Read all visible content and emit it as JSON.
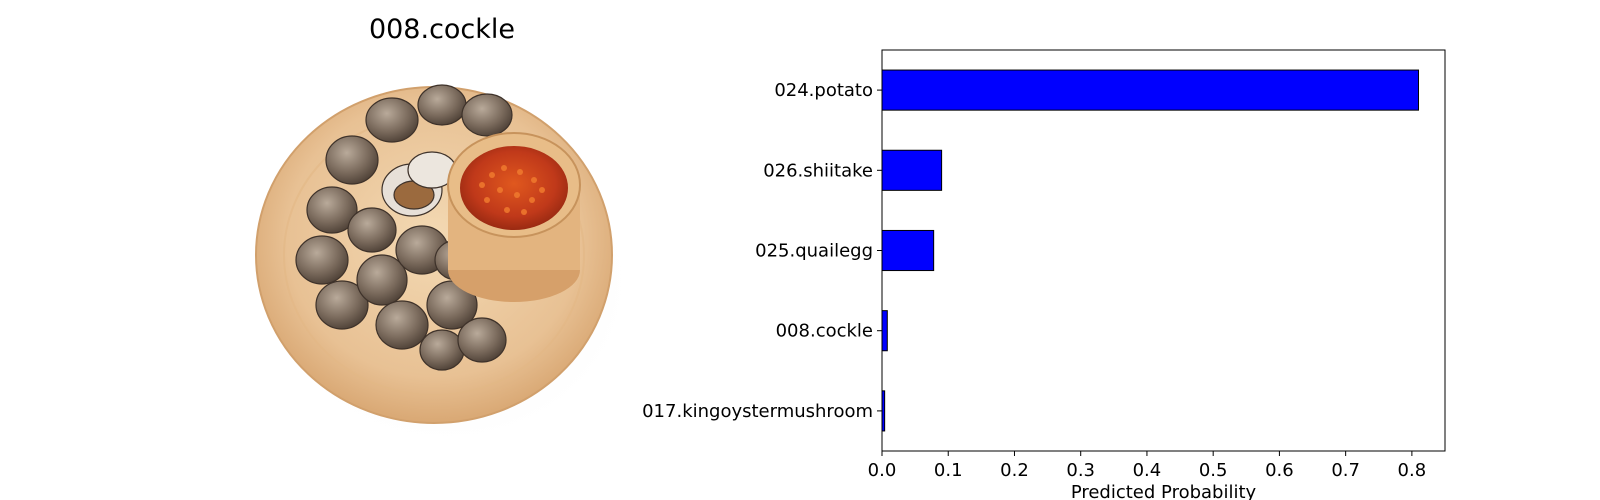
{
  "image_panel": {
    "title": "008.cockle"
  },
  "chart_data": {
    "type": "bar",
    "orientation": "horizontal",
    "categories": [
      "024.potato",
      "026.shiitake",
      "025.quailegg",
      "008.cockle",
      "017.kingoystermushroom"
    ],
    "values": [
      0.81,
      0.09,
      0.078,
      0.008,
      0.004
    ],
    "xlabel": "Predicted Probability",
    "ylabel": "",
    "xlim": [
      0,
      0.85
    ],
    "xticks": [
      0.0,
      0.1,
      0.2,
      0.3,
      0.4,
      0.5,
      0.6,
      0.7,
      0.8
    ],
    "xtick_labels": [
      "0.0",
      "0.1",
      "0.2",
      "0.3",
      "0.4",
      "0.5",
      "0.6",
      "0.7",
      "0.8"
    ],
    "grid": false,
    "bar_color": "#0000ff",
    "bar_edge_color": "#000000"
  }
}
